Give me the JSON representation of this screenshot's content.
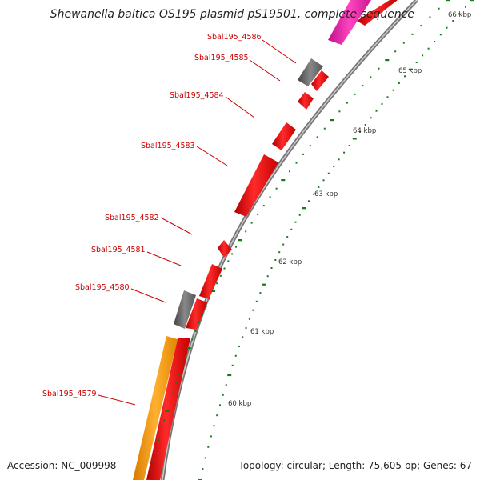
{
  "title": "Shewanella baltica OS195 plasmid pS19501, complete sequence",
  "footer": {
    "accession": "Accession: NC_009998",
    "topology": "Topology: circular; Length: 75,605 bp; Genes: 67"
  },
  "colors": {
    "cds_forward": "#ee1111",
    "other_gene": "#666666",
    "orange_gene": "#ff9900",
    "pink_gene": "#ee22aa",
    "backbone": "#888888",
    "ticks": "#1a7a1a",
    "label_text": "#cc0000"
  },
  "gene_labels": [
    "Sbal195_4586",
    "Sbal195_4585",
    "Sbal195_4584",
    "Sbal195_4583",
    "Sbal195_4582",
    "Sbal195_4581",
    "Sbal195_4580",
    "Sbal195_4579"
  ],
  "tick_labels": [
    "66 kbp",
    "65 kbp",
    "64 kbp",
    "63 kbp",
    "62 kbp",
    "61 kbp",
    "60 kbp"
  ]
}
